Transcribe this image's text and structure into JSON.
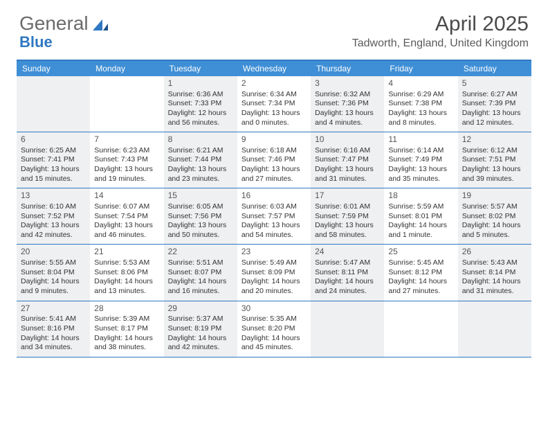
{
  "logo": {
    "text1": "General",
    "text2": "Blue"
  },
  "title": "April 2025",
  "location": "Tadworth, England, United Kingdom",
  "colors": {
    "header_bg": "#3f8fd6",
    "border": "#2f78c2",
    "shaded": "#eef0f1",
    "text": "#333333"
  },
  "day_names": [
    "Sunday",
    "Monday",
    "Tuesday",
    "Wednesday",
    "Thursday",
    "Friday",
    "Saturday"
  ],
  "weeks": [
    [
      {
        "blank": true,
        "shaded": true
      },
      {
        "blank": true,
        "shaded": false
      },
      {
        "day": "1",
        "shaded": true,
        "sunrise": "Sunrise: 6:36 AM",
        "sunset": "Sunset: 7:33 PM",
        "daylight1": "Daylight: 12 hours",
        "daylight2": "and 56 minutes."
      },
      {
        "day": "2",
        "shaded": false,
        "sunrise": "Sunrise: 6:34 AM",
        "sunset": "Sunset: 7:34 PM",
        "daylight1": "Daylight: 13 hours",
        "daylight2": "and 0 minutes."
      },
      {
        "day": "3",
        "shaded": true,
        "sunrise": "Sunrise: 6:32 AM",
        "sunset": "Sunset: 7:36 PM",
        "daylight1": "Daylight: 13 hours",
        "daylight2": "and 4 minutes."
      },
      {
        "day": "4",
        "shaded": false,
        "sunrise": "Sunrise: 6:29 AM",
        "sunset": "Sunset: 7:38 PM",
        "daylight1": "Daylight: 13 hours",
        "daylight2": "and 8 minutes."
      },
      {
        "day": "5",
        "shaded": true,
        "sunrise": "Sunrise: 6:27 AM",
        "sunset": "Sunset: 7:39 PM",
        "daylight1": "Daylight: 13 hours",
        "daylight2": "and 12 minutes."
      }
    ],
    [
      {
        "day": "6",
        "shaded": true,
        "sunrise": "Sunrise: 6:25 AM",
        "sunset": "Sunset: 7:41 PM",
        "daylight1": "Daylight: 13 hours",
        "daylight2": "and 15 minutes."
      },
      {
        "day": "7",
        "shaded": false,
        "sunrise": "Sunrise: 6:23 AM",
        "sunset": "Sunset: 7:43 PM",
        "daylight1": "Daylight: 13 hours",
        "daylight2": "and 19 minutes."
      },
      {
        "day": "8",
        "shaded": true,
        "sunrise": "Sunrise: 6:21 AM",
        "sunset": "Sunset: 7:44 PM",
        "daylight1": "Daylight: 13 hours",
        "daylight2": "and 23 minutes."
      },
      {
        "day": "9",
        "shaded": false,
        "sunrise": "Sunrise: 6:18 AM",
        "sunset": "Sunset: 7:46 PM",
        "daylight1": "Daylight: 13 hours",
        "daylight2": "and 27 minutes."
      },
      {
        "day": "10",
        "shaded": true,
        "sunrise": "Sunrise: 6:16 AM",
        "sunset": "Sunset: 7:47 PM",
        "daylight1": "Daylight: 13 hours",
        "daylight2": "and 31 minutes."
      },
      {
        "day": "11",
        "shaded": false,
        "sunrise": "Sunrise: 6:14 AM",
        "sunset": "Sunset: 7:49 PM",
        "daylight1": "Daylight: 13 hours",
        "daylight2": "and 35 minutes."
      },
      {
        "day": "12",
        "shaded": true,
        "sunrise": "Sunrise: 6:12 AM",
        "sunset": "Sunset: 7:51 PM",
        "daylight1": "Daylight: 13 hours",
        "daylight2": "and 39 minutes."
      }
    ],
    [
      {
        "day": "13",
        "shaded": true,
        "sunrise": "Sunrise: 6:10 AM",
        "sunset": "Sunset: 7:52 PM",
        "daylight1": "Daylight: 13 hours",
        "daylight2": "and 42 minutes."
      },
      {
        "day": "14",
        "shaded": false,
        "sunrise": "Sunrise: 6:07 AM",
        "sunset": "Sunset: 7:54 PM",
        "daylight1": "Daylight: 13 hours",
        "daylight2": "and 46 minutes."
      },
      {
        "day": "15",
        "shaded": true,
        "sunrise": "Sunrise: 6:05 AM",
        "sunset": "Sunset: 7:56 PM",
        "daylight1": "Daylight: 13 hours",
        "daylight2": "and 50 minutes."
      },
      {
        "day": "16",
        "shaded": false,
        "sunrise": "Sunrise: 6:03 AM",
        "sunset": "Sunset: 7:57 PM",
        "daylight1": "Daylight: 13 hours",
        "daylight2": "and 54 minutes."
      },
      {
        "day": "17",
        "shaded": true,
        "sunrise": "Sunrise: 6:01 AM",
        "sunset": "Sunset: 7:59 PM",
        "daylight1": "Daylight: 13 hours",
        "daylight2": "and 58 minutes."
      },
      {
        "day": "18",
        "shaded": false,
        "sunrise": "Sunrise: 5:59 AM",
        "sunset": "Sunset: 8:01 PM",
        "daylight1": "Daylight: 14 hours",
        "daylight2": "and 1 minute."
      },
      {
        "day": "19",
        "shaded": true,
        "sunrise": "Sunrise: 5:57 AM",
        "sunset": "Sunset: 8:02 PM",
        "daylight1": "Daylight: 14 hours",
        "daylight2": "and 5 minutes."
      }
    ],
    [
      {
        "day": "20",
        "shaded": true,
        "sunrise": "Sunrise: 5:55 AM",
        "sunset": "Sunset: 8:04 PM",
        "daylight1": "Daylight: 14 hours",
        "daylight2": "and 9 minutes."
      },
      {
        "day": "21",
        "shaded": false,
        "sunrise": "Sunrise: 5:53 AM",
        "sunset": "Sunset: 8:06 PM",
        "daylight1": "Daylight: 14 hours",
        "daylight2": "and 13 minutes."
      },
      {
        "day": "22",
        "shaded": true,
        "sunrise": "Sunrise: 5:51 AM",
        "sunset": "Sunset: 8:07 PM",
        "daylight1": "Daylight: 14 hours",
        "daylight2": "and 16 minutes."
      },
      {
        "day": "23",
        "shaded": false,
        "sunrise": "Sunrise: 5:49 AM",
        "sunset": "Sunset: 8:09 PM",
        "daylight1": "Daylight: 14 hours",
        "daylight2": "and 20 minutes."
      },
      {
        "day": "24",
        "shaded": true,
        "sunrise": "Sunrise: 5:47 AM",
        "sunset": "Sunset: 8:11 PM",
        "daylight1": "Daylight: 14 hours",
        "daylight2": "and 24 minutes."
      },
      {
        "day": "25",
        "shaded": false,
        "sunrise": "Sunrise: 5:45 AM",
        "sunset": "Sunset: 8:12 PM",
        "daylight1": "Daylight: 14 hours",
        "daylight2": "and 27 minutes."
      },
      {
        "day": "26",
        "shaded": true,
        "sunrise": "Sunrise: 5:43 AM",
        "sunset": "Sunset: 8:14 PM",
        "daylight1": "Daylight: 14 hours",
        "daylight2": "and 31 minutes."
      }
    ],
    [
      {
        "day": "27",
        "shaded": true,
        "sunrise": "Sunrise: 5:41 AM",
        "sunset": "Sunset: 8:16 PM",
        "daylight1": "Daylight: 14 hours",
        "daylight2": "and 34 minutes."
      },
      {
        "day": "28",
        "shaded": false,
        "sunrise": "Sunrise: 5:39 AM",
        "sunset": "Sunset: 8:17 PM",
        "daylight1": "Daylight: 14 hours",
        "daylight2": "and 38 minutes."
      },
      {
        "day": "29",
        "shaded": true,
        "sunrise": "Sunrise: 5:37 AM",
        "sunset": "Sunset: 8:19 PM",
        "daylight1": "Daylight: 14 hours",
        "daylight2": "and 42 minutes."
      },
      {
        "day": "30",
        "shaded": false,
        "sunrise": "Sunrise: 5:35 AM",
        "sunset": "Sunset: 8:20 PM",
        "daylight1": "Daylight: 14 hours",
        "daylight2": "and 45 minutes."
      },
      {
        "blank": true,
        "shaded": true
      },
      {
        "blank": true,
        "shaded": false
      },
      {
        "blank": true,
        "shaded": true
      }
    ]
  ]
}
